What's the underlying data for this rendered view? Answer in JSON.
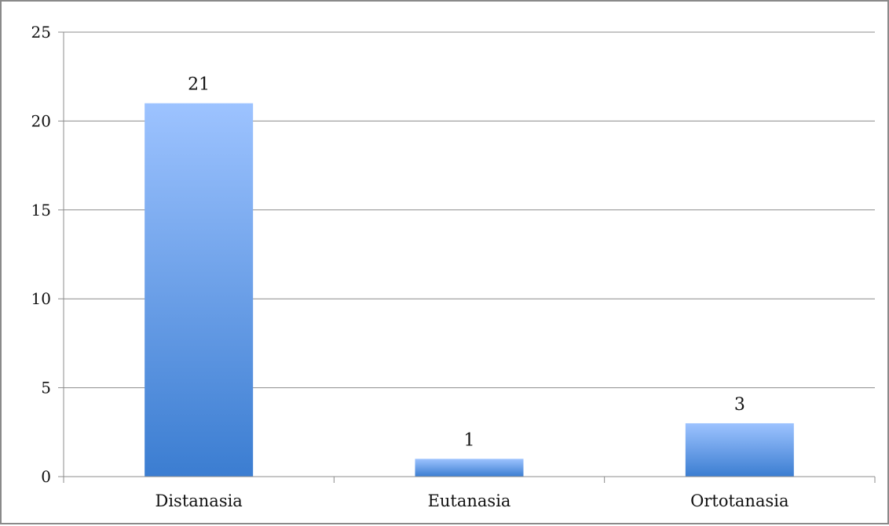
{
  "chart_data": {
    "type": "bar",
    "title": "",
    "xlabel": "",
    "ylabel": "",
    "categories": [
      "Distanasia",
      "Eutanasia",
      "Ortotanasia"
    ],
    "values": [
      21,
      1,
      3
    ],
    "data_labels": [
      "21",
      "1",
      "3"
    ],
    "ylim": [
      0,
      25
    ],
    "yticks": [
      0,
      5,
      10,
      15,
      20,
      25
    ],
    "ytick_labels": [
      "0",
      "5",
      "10",
      "15",
      "20",
      "25"
    ],
    "grid": "horizontal",
    "legend": "none",
    "colors": {
      "bar_top": "#9dc3ff",
      "bar_bottom": "#3b7dd1",
      "grid": "#8c8c8c",
      "axis": "#8c8c8c",
      "frame": "#8a8a8a",
      "text": "#111111"
    }
  }
}
